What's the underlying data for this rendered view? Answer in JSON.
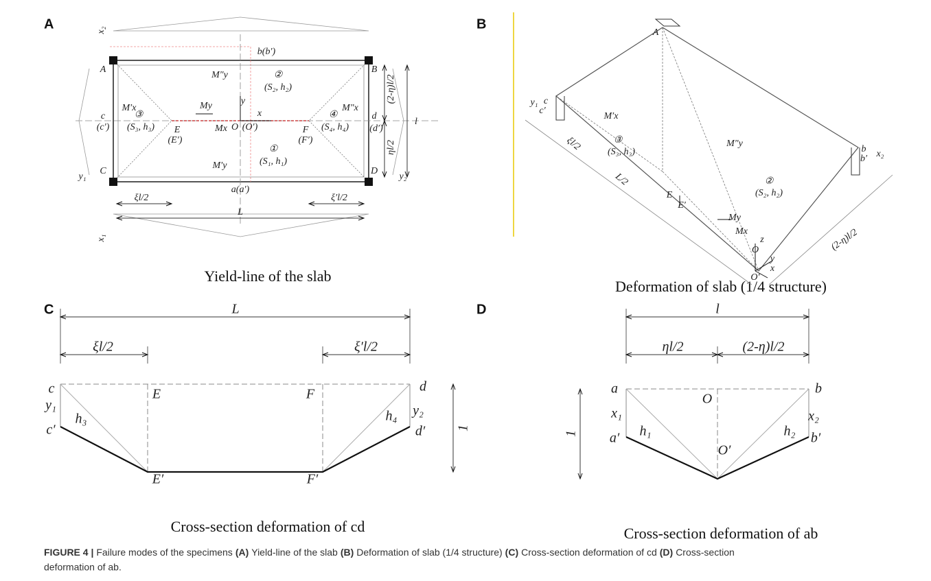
{
  "panel_a": {
    "letter": "A",
    "caption": "Yield-line of the slab",
    "labels": [
      "b(b′)",
      "A",
      "B",
      "C",
      "D",
      "c",
      "(c′)",
      "d",
      "(d′)",
      "E",
      "(E′)",
      "F",
      "(F′)",
      "O",
      "(O′)",
      "a(a′)",
      "M″y",
      "M′y",
      "My",
      "Mx",
      "M′x",
      "M″x",
      "y",
      "x",
      "②",
      "(S₂, h₂)",
      "③",
      "(S₃, h₃)",
      "④",
      "(S₄, h₄)",
      "①",
      "(S₁, h₁)",
      "(2-η)l/2",
      "ηl/2",
      "l",
      "ξl/2",
      "ξ′l/2",
      "L",
      "x₂",
      "x₁",
      "y₁",
      "y₂"
    ]
  },
  "panel_b": {
    "letter": "B",
    "caption": "Deformation of slab (1/4 structure)",
    "labels": [
      "A",
      "c",
      "c′",
      "y₁",
      "③",
      "(S₃, h₃)",
      "M′x",
      "M″y",
      "②",
      "(S₂, h₂)",
      "E",
      "E′",
      "ξl/2",
      "L/2",
      "My",
      "Mx",
      "z",
      "O",
      "y",
      "x",
      "O′",
      "b",
      "b′",
      "x₂",
      "(2-η)l/2"
    ]
  },
  "panel_c": {
    "letter": "C",
    "caption": "Cross-section deformation of cd",
    "labels": [
      "L",
      "ξl/2",
      "ξ′l/2",
      "c",
      "y₁",
      "c′",
      "h₃",
      "E",
      "E′",
      "F",
      "F′",
      "d",
      "y₂",
      "h₄",
      "d′",
      "1"
    ]
  },
  "panel_d": {
    "letter": "D",
    "caption": "Cross-section deformation of ab",
    "labels": [
      "l",
      "ηl/2",
      "(2-η)l/2",
      "a",
      "x₁",
      "a′",
      "h₁",
      "O",
      "O′",
      "b",
      "x₂",
      "h₂",
      "b′",
      "1"
    ]
  },
  "figure_caption": {
    "segments": [
      "FIGURE 4 |",
      "Failure modes of the specimens",
      "(A)",
      "Yield-line of the slab",
      "(B)",
      "Deformation of slab (1/4 structure)",
      "(C)",
      "Cross-section deformation of cd",
      "(D)",
      "Cross-section"
    ],
    "line_2": "deformation of ab."
  }
}
